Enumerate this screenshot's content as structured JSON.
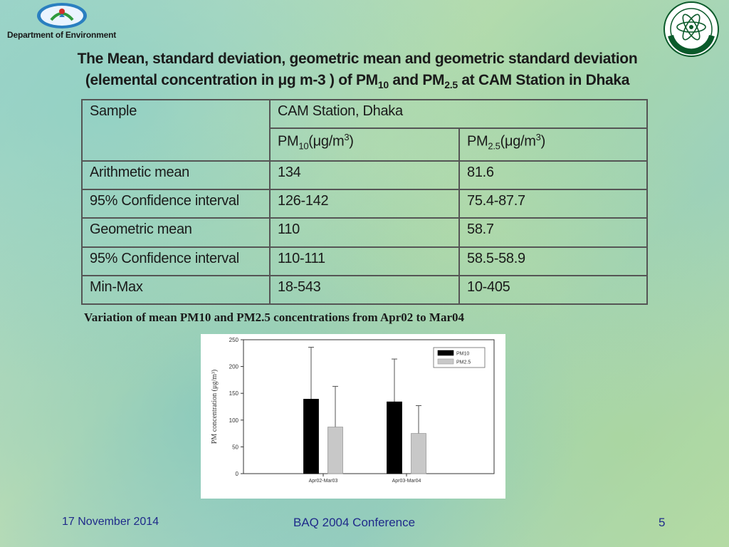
{
  "header": {
    "department": "Department of Environment"
  },
  "title": {
    "line1": "The Mean, standard deviation, geometric mean and geometric standard deviation",
    "line2_pre": "(elemental concentration in ",
    "mu": "μ",
    "line2_mid": "g m-3 ) of PM",
    "sub10": "10",
    "and": " and PM",
    "sub25": "2.5",
    "line2_post": " at CAM Station in Dhaka"
  },
  "table": {
    "sample_header": "Sample",
    "station_header": "CAM Station, Dhaka",
    "pm10_header": {
      "base": "PM",
      "sub": "10",
      "unit_pre": "(",
      "mu": "μ",
      "unit": "g/m",
      "sup": "3",
      "unit_post": ")"
    },
    "pm25_header": {
      "base": "PM",
      "sub": "2.5",
      "unit_pre": "(",
      "mu": "μ",
      "unit": "g/m",
      "sup": "3",
      "unit_post": ")"
    },
    "rows": [
      {
        "label": "Arithmetic mean",
        "pm10": "134",
        "pm25": "81.6"
      },
      {
        "label": "95% Confidence interval",
        "pm10": "126-142",
        "pm25": "75.4-87.7"
      },
      {
        "label": "Geometric mean",
        "pm10": "110",
        "pm25": "58.7"
      },
      {
        "label": "95% Confidence interval",
        "pm10": "110-111",
        "pm25": "58.5-58.9"
      },
      {
        "label": "Min-Max",
        "pm10": "18-543",
        "pm25": "10-405"
      }
    ]
  },
  "caption": "Variation of mean PM10 and PM2.5 concentrations from Apr02 to Mar04",
  "chart_data": {
    "type": "bar",
    "categories": [
      "Apr02-Mar03",
      "Apr03-Mar04"
    ],
    "series": [
      {
        "name": "PM10",
        "values": [
          139,
          134
        ],
        "error_upper": [
          236,
          214
        ],
        "color": "#000000"
      },
      {
        "name": "PM2.5",
        "values": [
          87,
          75
        ],
        "error_upper": [
          163,
          127
        ],
        "color": "#c8c8c8"
      }
    ],
    "ylabel": "PM concentration (μg/m³)",
    "ylim": [
      0,
      250
    ],
    "yticks": [
      "0",
      "50",
      "100",
      "150",
      "200",
      "250"
    ],
    "legend_position": "top-right",
    "grid": false
  },
  "footer": {
    "date": "17 November 2014",
    "conference": "BAQ 2004 Conference",
    "page": "5"
  }
}
